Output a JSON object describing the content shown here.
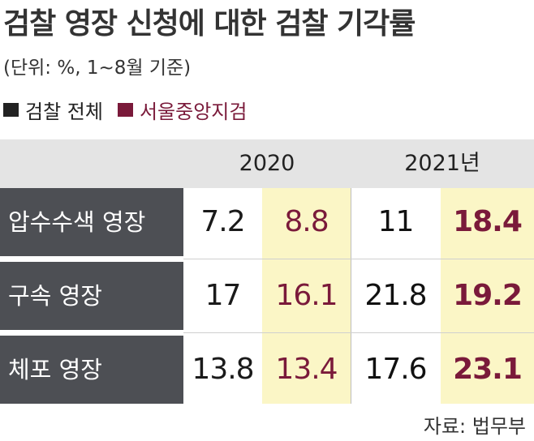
{
  "title": "검찰 영장 신청에 대한 검찰 기각률",
  "subtitle": "(단위: %, 1~8월 기준)",
  "legend": {
    "all_label": "검찰 전체",
    "all_color": "#222222",
    "seoul_label": "서울중앙지검",
    "seoul_color": "#7a1a3a"
  },
  "source": "자료: 법무부",
  "chart_data": {
    "type": "table",
    "title": "검찰 영장 신청에 대한 검찰 기각률",
    "unit": "(단위: %, 1~8월 기준)",
    "years": [
      "2020",
      "2021년"
    ],
    "series_labels": [
      "검찰 전체",
      "서울중앙지검"
    ],
    "rows": [
      {
        "label": "압수수색 영장",
        "y2020_all": "7.2",
        "y2020_seoul": "8.8",
        "y2021_all": "11",
        "y2021_seoul": "18.4"
      },
      {
        "label": "구속 영장",
        "y2020_all": "17",
        "y2020_seoul": "16.1",
        "y2021_all": "21.8",
        "y2021_seoul": "19.2"
      },
      {
        "label": "체포 영장",
        "y2020_all": "13.8",
        "y2020_seoul": "13.4",
        "y2021_all": "17.6",
        "y2021_seoul": "23.1"
      }
    ]
  }
}
